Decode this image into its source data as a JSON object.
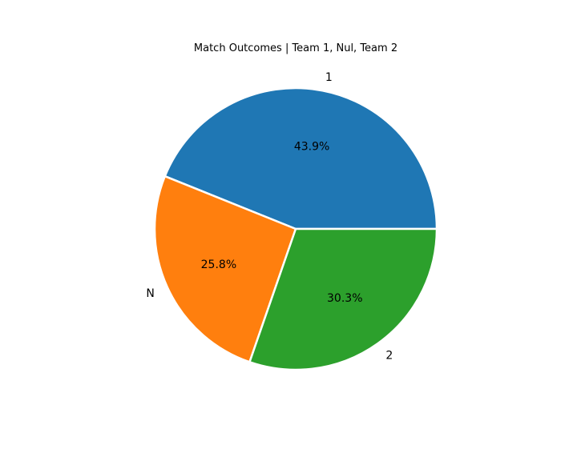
{
  "chart_data": {
    "type": "pie",
    "title": "Match Outcomes | Team 1, Nul, Team 2",
    "categories": [
      "1",
      "N",
      "2"
    ],
    "values": [
      43.9,
      25.8,
      30.3
    ],
    "value_labels": [
      "43.9%",
      "25.8%",
      "30.3%"
    ],
    "colors": [
      "#1f77b4",
      "#ff7f0e",
      "#2ca02c"
    ],
    "start_angle": 0,
    "direction": "counterclockwise",
    "edge_color": "#ffffff",
    "legend": "none"
  }
}
